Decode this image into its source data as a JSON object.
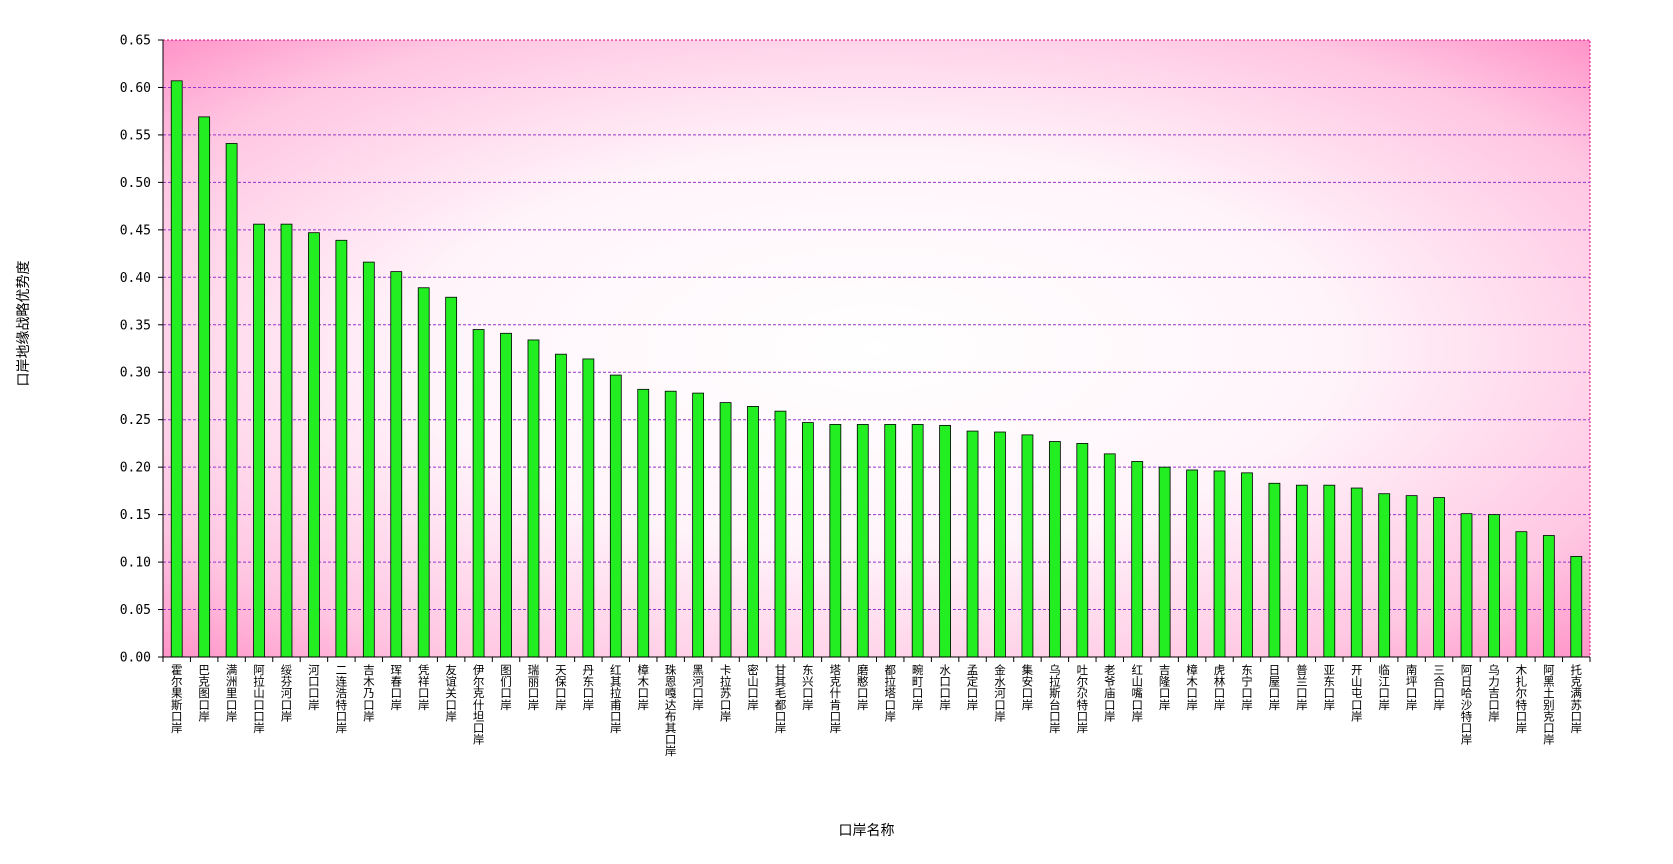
{
  "chart_data": {
    "type": "bar",
    "title": "",
    "xlabel": "口岸名称",
    "ylabel": "口岸地缘战略优势度",
    "ylim": [
      0,
      0.65
    ],
    "yticks": [
      "0.00",
      "0.05",
      "0.10",
      "0.15",
      "0.20",
      "0.25",
      "0.30",
      "0.35",
      "0.40",
      "0.45",
      "0.50",
      "0.55",
      "0.60",
      "0.65"
    ],
    "grid": true,
    "legend": "none",
    "colors": {
      "bar": "#22ee22",
      "bar_stroke": "#000000",
      "grid": "#9933cc",
      "plot_edge": "#d8007a",
      "bg_edge": "#ff99cc",
      "bg_center": "#ffffff"
    },
    "categories": [
      "霍尔果斯口岸",
      "巴克图口岸",
      "满洲里口岸",
      "阿拉山口口岸",
      "绥芬河口岸",
      "河口口岸",
      "二连浩特口岸",
      "吉木乃口岸",
      "珲春口岸",
      "凭祥口岸",
      "友谊关口岸",
      "伊尔克什坦口岸",
      "图们口岸",
      "瑞丽口岸",
      "天保口岸",
      "丹东口岸",
      "红其拉甫口岸",
      "樟木口岸",
      "珠恩嘎达布其口岸",
      "黑河口岸",
      "卡拉苏口岸",
      "密山口岸",
      "甘其毛都口岸",
      "东兴口岸",
      "塔克什肯口岸",
      "磨憨口岸",
      "都拉塔口岸",
      "畹町口岸",
      "水口口岸",
      "孟定口岸",
      "金水河口岸",
      "集安口岸",
      "乌拉斯台口岸",
      "吐尔尕特口岸",
      "老爷庙口岸",
      "红山嘴口岸",
      "吉隆口岸",
      "樟木口岸",
      "虎林口岸",
      "东宁口岸",
      "日屋口岸",
      "普兰口岸",
      "亚东口岸",
      "开山屯口岸",
      "临江口岸",
      "南坪口岸",
      "三合口岸",
      "阿日哈沙特口岸",
      "乌力吉口岸",
      "木扎尔特口岸",
      "阿黑土别克口岸",
      "托克满苏口岸"
    ],
    "values": [
      0.607,
      0.569,
      0.541,
      0.456,
      0.456,
      0.447,
      0.439,
      0.416,
      0.406,
      0.389,
      0.379,
      0.345,
      0.341,
      0.334,
      0.319,
      0.314,
      0.297,
      0.282,
      0.28,
      0.278,
      0.268,
      0.264,
      0.259,
      0.247,
      0.245,
      0.245,
      0.245,
      0.245,
      0.244,
      0.238,
      0.237,
      0.234,
      0.227,
      0.225,
      0.214,
      0.206,
      0.2,
      0.197,
      0.196,
      0.194,
      0.183,
      0.181,
      0.181,
      0.178,
      0.172,
      0.17,
      0.168,
      0.151,
      0.15,
      0.132,
      0.128,
      0.106
    ]
  }
}
